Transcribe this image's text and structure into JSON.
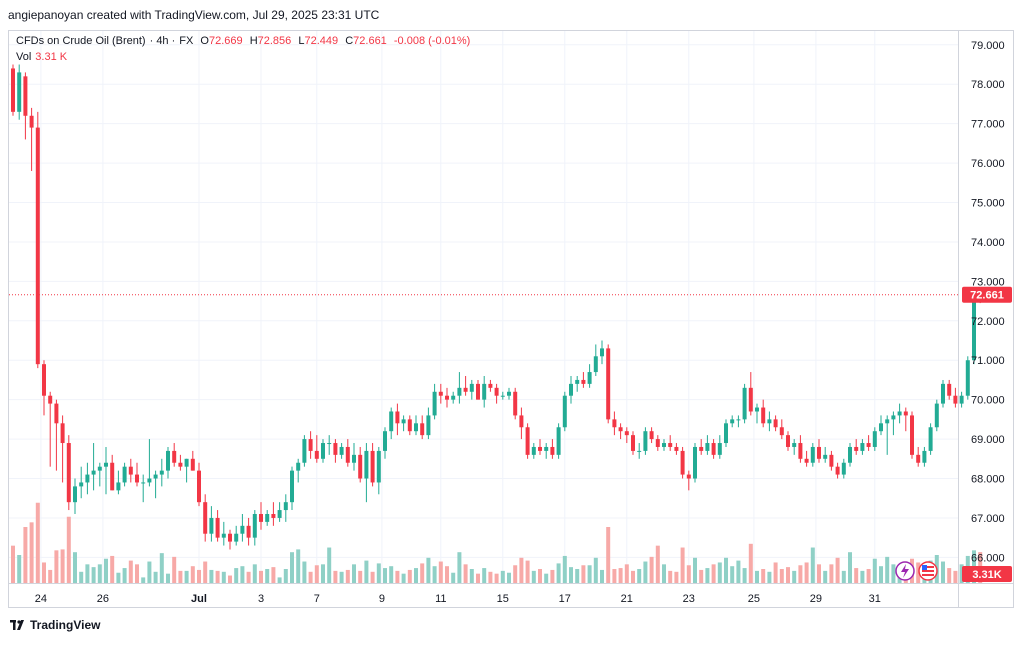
{
  "header": {
    "created_by": "angiepanoyan created with TradingView.com, Jul 29, 2025 23:31 UTC"
  },
  "legend": {
    "symbol": "CFDs on Crude Oil (Brent)",
    "interval": "· 4h ·",
    "exchange": "FX",
    "o_label": "O",
    "o_value": "72.669",
    "h_label": "H",
    "h_value": "72.856",
    "l_label": "L",
    "l_value": "72.449",
    "c_label": "C",
    "c_value": "72.661",
    "change": "-0.008 (-0.01%)",
    "vol_label": "Vol",
    "vol_value": "3.31 K"
  },
  "footer": {
    "brand": "TradingView"
  },
  "colors": {
    "up": "#22ab94",
    "down": "#f23645",
    "up_vol": "#8fd0c6",
    "down_vol": "#f7a9a7",
    "price_line": "#f23645"
  },
  "chart_data": {
    "type": "candlestick",
    "price_axis": {
      "range": [
        65.35,
        79.35
      ],
      "ticks": [
        66,
        67,
        68,
        69,
        70,
        71,
        72,
        73,
        74,
        75,
        76,
        77,
        78,
        79
      ],
      "tick_labels": [
        "66.000",
        "67.000",
        "68.000",
        "69.000",
        "70.000",
        "71.000",
        "72.000",
        "73.000",
        "74.000",
        "75.000",
        "76.000",
        "77.000",
        "78.000",
        "79.000"
      ],
      "last_price": 72.661,
      "last_price_label": "72.661",
      "last_volume_label": "3.31K"
    },
    "time_axis": {
      "labels": [
        "24",
        "26",
        "Jul",
        "3",
        "7",
        "9",
        "11",
        "15",
        "17",
        "21",
        "23",
        "25",
        "29",
        "31"
      ],
      "label_bar_index": [
        4.5,
        14.5,
        30,
        40,
        49,
        59.5,
        69,
        79,
        89,
        99,
        109,
        119.5,
        129.5,
        139
      ]
    },
    "volume_max": 6,
    "bars": [
      {
        "o": 78.4,
        "h": 78.5,
        "l": 77.2,
        "c": 77.3,
        "v": 4
      },
      {
        "o": 77.3,
        "h": 78.5,
        "l": 77.1,
        "c": 78.3,
        "v": 3
      },
      {
        "o": 78.2,
        "h": 78.3,
        "l": 76.6,
        "c": 77.2,
        "v": 6
      },
      {
        "o": 77.2,
        "h": 77.4,
        "l": 75.8,
        "c": 76.9,
        "v": 6.5
      },
      {
        "o": 76.9,
        "h": 77.3,
        "l": 70.8,
        "c": 70.9,
        "v": 8.6
      },
      {
        "o": 70.9,
        "h": 71.0,
        "l": 69.6,
        "c": 70.1,
        "v": 2.2
      },
      {
        "o": 70.1,
        "h": 70.2,
        "l": 68.3,
        "c": 69.9,
        "v": 1.4
      },
      {
        "o": 69.9,
        "h": 70.0,
        "l": 68.2,
        "c": 69.4,
        "v": 3.5
      },
      {
        "o": 69.4,
        "h": 69.6,
        "l": 67.9,
        "c": 68.9,
        "v": 3.6
      },
      {
        "o": 68.9,
        "h": 69.1,
        "l": 67.2,
        "c": 67.4,
        "v": 7.1
      },
      {
        "o": 67.4,
        "h": 68.0,
        "l": 67.1,
        "c": 67.8,
        "v": 3.3
      },
      {
        "o": 67.8,
        "h": 68.3,
        "l": 67.5,
        "c": 67.9,
        "v": 1.2
      },
      {
        "o": 67.9,
        "h": 68.4,
        "l": 67.6,
        "c": 68.1,
        "v": 2.0
      },
      {
        "o": 68.1,
        "h": 68.9,
        "l": 67.7,
        "c": 68.2,
        "v": 1.7
      },
      {
        "o": 68.2,
        "h": 68.4,
        "l": 67.8,
        "c": 68.3,
        "v": 2.0
      },
      {
        "o": 68.3,
        "h": 68.8,
        "l": 67.6,
        "c": 68.4,
        "v": 2.6
      },
      {
        "o": 68.4,
        "h": 68.6,
        "l": 67.7,
        "c": 67.7,
        "v": 2.9
      },
      {
        "o": 67.7,
        "h": 68.2,
        "l": 67.6,
        "c": 67.9,
        "v": 1.1
      },
      {
        "o": 67.9,
        "h": 68.4,
        "l": 67.8,
        "c": 68.3,
        "v": 1.6
      },
      {
        "o": 68.3,
        "h": 68.5,
        "l": 67.9,
        "c": 68.1,
        "v": 2.4
      },
      {
        "o": 68.1,
        "h": 68.4,
        "l": 67.8,
        "c": 67.9,
        "v": 2.0
      },
      {
        "o": 67.9,
        "h": 68.1,
        "l": 67.4,
        "c": 67.9,
        "v": 0.6
      },
      {
        "o": 67.9,
        "h": 69.0,
        "l": 67.8,
        "c": 68.0,
        "v": 2.3
      },
      {
        "o": 68.0,
        "h": 68.2,
        "l": 67.5,
        "c": 68.1,
        "v": 1.2
      },
      {
        "o": 68.1,
        "h": 68.5,
        "l": 67.8,
        "c": 68.2,
        "v": 3.2
      },
      {
        "o": 68.2,
        "h": 68.8,
        "l": 68.0,
        "c": 68.7,
        "v": 1.0
      },
      {
        "o": 68.7,
        "h": 68.9,
        "l": 68.3,
        "c": 68.4,
        "v": 2.8
      },
      {
        "o": 68.4,
        "h": 68.6,
        "l": 68.2,
        "c": 68.3,
        "v": 1.3
      },
      {
        "o": 68.3,
        "h": 68.5,
        "l": 67.9,
        "c": 68.5,
        "v": 1.3
      },
      {
        "o": 68.5,
        "h": 68.7,
        "l": 68.2,
        "c": 68.2,
        "v": 1.8
      },
      {
        "o": 68.2,
        "h": 68.4,
        "l": 67.3,
        "c": 67.4,
        "v": 1.4
      },
      {
        "o": 67.4,
        "h": 67.6,
        "l": 66.4,
        "c": 66.6,
        "v": 2.3
      },
      {
        "o": 66.6,
        "h": 67.3,
        "l": 66.4,
        "c": 67.0,
        "v": 1.4
      },
      {
        "o": 67.0,
        "h": 67.2,
        "l": 66.4,
        "c": 66.5,
        "v": 1.3
      },
      {
        "o": 66.5,
        "h": 66.9,
        "l": 66.3,
        "c": 66.6,
        "v": 1.2
      },
      {
        "o": 66.6,
        "h": 66.7,
        "l": 66.2,
        "c": 66.4,
        "v": 0.8
      },
      {
        "o": 66.4,
        "h": 66.8,
        "l": 66.3,
        "c": 66.6,
        "v": 1.6
      },
      {
        "o": 66.6,
        "h": 67.1,
        "l": 66.4,
        "c": 66.8,
        "v": 1.8
      },
      {
        "o": 66.8,
        "h": 67.0,
        "l": 66.3,
        "c": 66.5,
        "v": 1.2
      },
      {
        "o": 66.5,
        "h": 67.2,
        "l": 66.3,
        "c": 67.1,
        "v": 2.0
      },
      {
        "o": 67.1,
        "h": 67.4,
        "l": 66.7,
        "c": 66.9,
        "v": 1.3
      },
      {
        "o": 66.9,
        "h": 67.2,
        "l": 66.8,
        "c": 67.1,
        "v": 1.5
      },
      {
        "o": 67.1,
        "h": 67.4,
        "l": 66.8,
        "c": 67.0,
        "v": 1.7
      },
      {
        "o": 67.0,
        "h": 67.4,
        "l": 66.9,
        "c": 67.2,
        "v": 0.6
      },
      {
        "o": 67.2,
        "h": 67.6,
        "l": 66.9,
        "c": 67.4,
        "v": 1.5
      },
      {
        "o": 67.4,
        "h": 68.3,
        "l": 67.2,
        "c": 68.2,
        "v": 3.3
      },
      {
        "o": 68.2,
        "h": 68.5,
        "l": 67.9,
        "c": 68.4,
        "v": 3.6
      },
      {
        "o": 68.4,
        "h": 69.1,
        "l": 68.3,
        "c": 69.0,
        "v": 2.3
      },
      {
        "o": 69.0,
        "h": 69.2,
        "l": 68.5,
        "c": 68.7,
        "v": 1.2
      },
      {
        "o": 68.7,
        "h": 69.1,
        "l": 68.4,
        "c": 68.5,
        "v": 1.9
      },
      {
        "o": 68.5,
        "h": 69.0,
        "l": 68.4,
        "c": 68.9,
        "v": 2.0
      },
      {
        "o": 68.9,
        "h": 69.1,
        "l": 68.6,
        "c": 68.9,
        "v": 3.8
      },
      {
        "o": 68.9,
        "h": 69.0,
        "l": 68.4,
        "c": 68.6,
        "v": 1.3
      },
      {
        "o": 68.6,
        "h": 68.9,
        "l": 68.5,
        "c": 68.8,
        "v": 1.2
      },
      {
        "o": 68.8,
        "h": 69.0,
        "l": 68.3,
        "c": 68.4,
        "v": 1.4
      },
      {
        "o": 68.4,
        "h": 68.9,
        "l": 68.2,
        "c": 68.6,
        "v": 2.0
      },
      {
        "o": 68.6,
        "h": 68.8,
        "l": 67.9,
        "c": 68.0,
        "v": 1.3
      },
      {
        "o": 68.0,
        "h": 68.9,
        "l": 67.4,
        "c": 68.7,
        "v": 2.4
      },
      {
        "o": 68.7,
        "h": 68.9,
        "l": 67.8,
        "c": 67.9,
        "v": 1.2
      },
      {
        "o": 67.9,
        "h": 68.8,
        "l": 67.6,
        "c": 68.7,
        "v": 2.1
      },
      {
        "o": 68.7,
        "h": 69.3,
        "l": 68.5,
        "c": 69.2,
        "v": 1.6
      },
      {
        "o": 69.2,
        "h": 69.8,
        "l": 69.0,
        "c": 69.7,
        "v": 1.8
      },
      {
        "o": 69.7,
        "h": 69.9,
        "l": 69.1,
        "c": 69.4,
        "v": 1.3
      },
      {
        "o": 69.4,
        "h": 69.6,
        "l": 69.2,
        "c": 69.5,
        "v": 1.0
      },
      {
        "o": 69.5,
        "h": 69.6,
        "l": 69.1,
        "c": 69.2,
        "v": 1.4
      },
      {
        "o": 69.2,
        "h": 69.6,
        "l": 69.1,
        "c": 69.4,
        "v": 1.6
      },
      {
        "o": 69.4,
        "h": 69.6,
        "l": 69.0,
        "c": 69.1,
        "v": 2.1
      },
      {
        "o": 69.1,
        "h": 69.8,
        "l": 69.0,
        "c": 69.6,
        "v": 2.7
      },
      {
        "o": 69.6,
        "h": 70.4,
        "l": 69.5,
        "c": 70.2,
        "v": 1.8
      },
      {
        "o": 70.2,
        "h": 70.4,
        "l": 69.9,
        "c": 70.1,
        "v": 2.3
      },
      {
        "o": 70.1,
        "h": 70.3,
        "l": 69.8,
        "c": 70.0,
        "v": 1.8
      },
      {
        "o": 70.0,
        "h": 70.2,
        "l": 69.9,
        "c": 70.1,
        "v": 1.1
      },
      {
        "o": 70.1,
        "h": 70.7,
        "l": 69.9,
        "c": 70.3,
        "v": 3.3
      },
      {
        "o": 70.3,
        "h": 70.6,
        "l": 70.1,
        "c": 70.2,
        "v": 2.0
      },
      {
        "o": 70.2,
        "h": 70.5,
        "l": 70.0,
        "c": 70.4,
        "v": 1.5
      },
      {
        "o": 70.4,
        "h": 70.5,
        "l": 70.0,
        "c": 70.0,
        "v": 1.0
      },
      {
        "o": 70.0,
        "h": 70.6,
        "l": 69.8,
        "c": 70.4,
        "v": 1.6
      },
      {
        "o": 70.4,
        "h": 70.5,
        "l": 70.2,
        "c": 70.3,
        "v": 1.2
      },
      {
        "o": 70.3,
        "h": 70.4,
        "l": 69.9,
        "c": 70.1,
        "v": 1.0
      },
      {
        "o": 70.1,
        "h": 70.2,
        "l": 70.0,
        "c": 70.1,
        "v": 1.3
      },
      {
        "o": 70.1,
        "h": 70.3,
        "l": 70.0,
        "c": 70.2,
        "v": 1.1
      },
      {
        "o": 70.2,
        "h": 70.3,
        "l": 69.5,
        "c": 69.6,
        "v": 1.9
      },
      {
        "o": 69.6,
        "h": 69.8,
        "l": 69.0,
        "c": 69.3,
        "v": 2.7
      },
      {
        "o": 69.3,
        "h": 69.4,
        "l": 68.5,
        "c": 68.6,
        "v": 2.4
      },
      {
        "o": 68.6,
        "h": 68.9,
        "l": 68.5,
        "c": 68.8,
        "v": 1.3
      },
      {
        "o": 68.8,
        "h": 69.0,
        "l": 68.6,
        "c": 68.7,
        "v": 1.5
      },
      {
        "o": 68.7,
        "h": 68.9,
        "l": 68.5,
        "c": 68.8,
        "v": 1.0
      },
      {
        "o": 68.8,
        "h": 69.0,
        "l": 68.5,
        "c": 68.6,
        "v": 1.4
      },
      {
        "o": 68.6,
        "h": 69.4,
        "l": 68.5,
        "c": 69.3,
        "v": 2.1
      },
      {
        "o": 69.3,
        "h": 70.2,
        "l": 69.2,
        "c": 70.1,
        "v": 2.9
      },
      {
        "o": 70.1,
        "h": 70.6,
        "l": 69.9,
        "c": 70.4,
        "v": 1.7
      },
      {
        "o": 70.4,
        "h": 70.6,
        "l": 70.2,
        "c": 70.5,
        "v": 1.5
      },
      {
        "o": 70.5,
        "h": 70.7,
        "l": 70.3,
        "c": 70.4,
        "v": 1.9
      },
      {
        "o": 70.4,
        "h": 70.9,
        "l": 70.3,
        "c": 70.7,
        "v": 1.9
      },
      {
        "o": 70.7,
        "h": 71.4,
        "l": 70.6,
        "c": 71.1,
        "v": 2.7
      },
      {
        "o": 71.1,
        "h": 71.5,
        "l": 70.9,
        "c": 71.3,
        "v": 1.4
      },
      {
        "o": 71.3,
        "h": 71.4,
        "l": 69.4,
        "c": 69.5,
        "v": 6.0
      },
      {
        "o": 69.5,
        "h": 69.7,
        "l": 69.1,
        "c": 69.3,
        "v": 1.5
      },
      {
        "o": 69.3,
        "h": 69.4,
        "l": 69.0,
        "c": 69.2,
        "v": 1.6
      },
      {
        "o": 69.2,
        "h": 69.3,
        "l": 68.9,
        "c": 69.1,
        "v": 2.0
      },
      {
        "o": 69.1,
        "h": 69.2,
        "l": 68.6,
        "c": 68.7,
        "v": 1.3
      },
      {
        "o": 68.7,
        "h": 68.9,
        "l": 68.5,
        "c": 68.7,
        "v": 1.5
      },
      {
        "o": 68.7,
        "h": 69.3,
        "l": 68.6,
        "c": 69.2,
        "v": 2.3
      },
      {
        "o": 69.2,
        "h": 69.3,
        "l": 68.9,
        "c": 69.0,
        "v": 2.8
      },
      {
        "o": 69.0,
        "h": 69.1,
        "l": 68.7,
        "c": 68.8,
        "v": 4.0
      },
      {
        "o": 68.8,
        "h": 69.0,
        "l": 68.7,
        "c": 68.9,
        "v": 2.0
      },
      {
        "o": 68.9,
        "h": 69.1,
        "l": 68.7,
        "c": 68.8,
        "v": 1.3
      },
      {
        "o": 68.8,
        "h": 68.9,
        "l": 68.6,
        "c": 68.7,
        "v": 1.2
      },
      {
        "o": 68.7,
        "h": 68.8,
        "l": 68.0,
        "c": 68.1,
        "v": 3.8
      },
      {
        "o": 68.1,
        "h": 68.2,
        "l": 67.7,
        "c": 68.0,
        "v": 1.9
      },
      {
        "o": 68.0,
        "h": 68.9,
        "l": 67.9,
        "c": 68.8,
        "v": 2.7
      },
      {
        "o": 68.8,
        "h": 69.0,
        "l": 68.6,
        "c": 68.7,
        "v": 1.4
      },
      {
        "o": 68.7,
        "h": 69.1,
        "l": 68.6,
        "c": 68.9,
        "v": 1.6
      },
      {
        "o": 68.9,
        "h": 69.0,
        "l": 68.5,
        "c": 68.6,
        "v": 2.0
      },
      {
        "o": 68.6,
        "h": 69.1,
        "l": 68.5,
        "c": 68.9,
        "v": 2.2
      },
      {
        "o": 68.9,
        "h": 69.5,
        "l": 68.8,
        "c": 69.4,
        "v": 2.7
      },
      {
        "o": 69.4,
        "h": 69.6,
        "l": 69.3,
        "c": 69.5,
        "v": 1.8
      },
      {
        "o": 69.5,
        "h": 69.6,
        "l": 69.3,
        "c": 69.5,
        "v": 2.4
      },
      {
        "o": 69.5,
        "h": 70.4,
        "l": 69.4,
        "c": 70.3,
        "v": 1.6
      },
      {
        "o": 70.3,
        "h": 70.7,
        "l": 69.6,
        "c": 69.7,
        "v": 4.2
      },
      {
        "o": 69.7,
        "h": 69.9,
        "l": 69.4,
        "c": 69.8,
        "v": 1.3
      },
      {
        "o": 69.8,
        "h": 70.0,
        "l": 69.3,
        "c": 69.4,
        "v": 1.5
      },
      {
        "o": 69.4,
        "h": 69.7,
        "l": 69.2,
        "c": 69.5,
        "v": 1.2
      },
      {
        "o": 69.5,
        "h": 69.6,
        "l": 69.2,
        "c": 69.3,
        "v": 2.2
      },
      {
        "o": 69.3,
        "h": 69.5,
        "l": 69.0,
        "c": 69.1,
        "v": 1.5
      },
      {
        "o": 69.1,
        "h": 69.2,
        "l": 68.7,
        "c": 68.8,
        "v": 1.7
      },
      {
        "o": 68.8,
        "h": 69.0,
        "l": 68.6,
        "c": 68.9,
        "v": 1.3
      },
      {
        "o": 68.9,
        "h": 69.1,
        "l": 68.4,
        "c": 68.5,
        "v": 1.9
      },
      {
        "o": 68.5,
        "h": 68.7,
        "l": 68.3,
        "c": 68.4,
        "v": 2.2
      },
      {
        "o": 68.4,
        "h": 68.9,
        "l": 68.3,
        "c": 68.8,
        "v": 3.8
      },
      {
        "o": 68.8,
        "h": 69.0,
        "l": 68.4,
        "c": 68.5,
        "v": 2.0
      },
      {
        "o": 68.5,
        "h": 68.8,
        "l": 68.4,
        "c": 68.6,
        "v": 1.3
      },
      {
        "o": 68.6,
        "h": 68.7,
        "l": 68.2,
        "c": 68.3,
        "v": 2.0
      },
      {
        "o": 68.3,
        "h": 68.4,
        "l": 68.0,
        "c": 68.1,
        "v": 2.7
      },
      {
        "o": 68.1,
        "h": 68.5,
        "l": 68.0,
        "c": 68.4,
        "v": 1.3
      },
      {
        "o": 68.4,
        "h": 68.9,
        "l": 68.3,
        "c": 68.8,
        "v": 3.3
      },
      {
        "o": 68.8,
        "h": 69.0,
        "l": 68.6,
        "c": 68.7,
        "v": 1.6
      },
      {
        "o": 68.7,
        "h": 69.0,
        "l": 68.6,
        "c": 68.9,
        "v": 1.3
      },
      {
        "o": 68.9,
        "h": 69.1,
        "l": 68.7,
        "c": 68.8,
        "v": 1.5
      },
      {
        "o": 68.8,
        "h": 69.3,
        "l": 68.7,
        "c": 69.2,
        "v": 2.6
      },
      {
        "o": 69.2,
        "h": 69.6,
        "l": 69.1,
        "c": 69.4,
        "v": 1.8
      },
      {
        "o": 69.4,
        "h": 69.6,
        "l": 68.6,
        "c": 69.5,
        "v": 2.8
      },
      {
        "o": 69.5,
        "h": 69.7,
        "l": 69.1,
        "c": 69.6,
        "v": 2.0
      },
      {
        "o": 69.6,
        "h": 69.9,
        "l": 69.4,
        "c": 69.7,
        "v": 1.5
      },
      {
        "o": 69.7,
        "h": 69.8,
        "l": 69.2,
        "c": 69.6,
        "v": 1.2
      },
      {
        "o": 69.6,
        "h": 69.7,
        "l": 68.5,
        "c": 68.6,
        "v": 2.6
      },
      {
        "o": 68.6,
        "h": 68.8,
        "l": 68.3,
        "c": 68.4,
        "v": 2.2
      },
      {
        "o": 68.4,
        "h": 68.8,
        "l": 68.3,
        "c": 68.7,
        "v": 1.5
      },
      {
        "o": 68.7,
        "h": 69.4,
        "l": 68.6,
        "c": 69.3,
        "v": 2.4
      },
      {
        "o": 69.3,
        "h": 70.0,
        "l": 69.2,
        "c": 69.9,
        "v": 3.0
      },
      {
        "o": 69.9,
        "h": 70.5,
        "l": 69.8,
        "c": 70.4,
        "v": 2.3
      },
      {
        "o": 70.4,
        "h": 70.5,
        "l": 70.0,
        "c": 70.1,
        "v": 1.6
      },
      {
        "o": 70.1,
        "h": 70.3,
        "l": 69.8,
        "c": 69.9,
        "v": 1.3
      },
      {
        "o": 69.9,
        "h": 70.2,
        "l": 69.8,
        "c": 70.1,
        "v": 2.0
      },
      {
        "o": 70.1,
        "h": 71.1,
        "l": 70.0,
        "c": 71.0,
        "v": 2.9
      },
      {
        "o": 71.0,
        "h": 72.8,
        "l": 70.9,
        "c": 72.7,
        "v": 3.5
      },
      {
        "o": 72.669,
        "h": 72.856,
        "l": 72.449,
        "c": 72.661,
        "v": 3.31
      }
    ]
  }
}
